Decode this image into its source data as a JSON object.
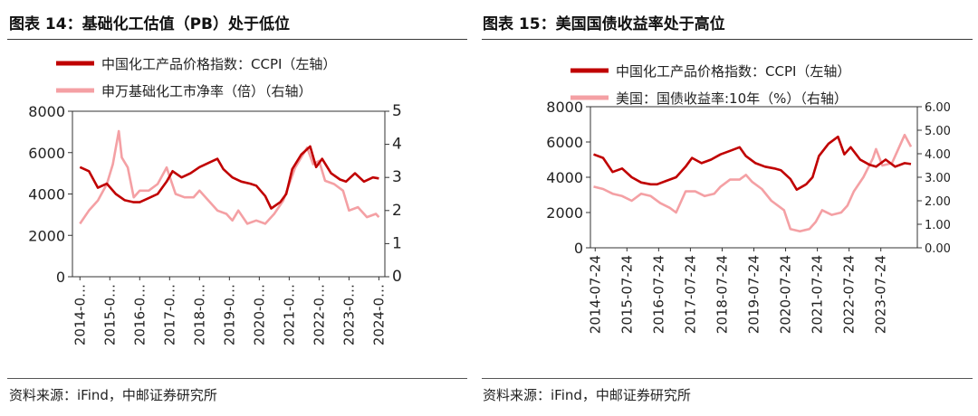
{
  "left": {
    "title": "图表 14：基础化工估值（PB）处于低位",
    "source": "资料来源：iFind，中邮证券研究所"
  },
  "right": {
    "title": "图表 15：美国国债收益率处于高位",
    "source": "资料来源：iFind，中邮证券研究所"
  },
  "colors": {
    "ccpi": "#c00000",
    "second": "#f4a0a4",
    "frame": "#333333"
  },
  "chart_data": [
    {
      "type": "line",
      "title": "基础化工估值（PB）处于低位",
      "legend": [
        "中国化工产品价格指数：CCPI（左轴）",
        "申万基础化工市净率（倍）（右轴）"
      ],
      "x_tick_labels": [
        "2014-0…",
        "2015-0…",
        "2016-0…",
        "2017-0…",
        "2018-0…",
        "2019-0…",
        "2020-0…",
        "2021-0…",
        "2022-0…",
        "2023-0…",
        "2024-0…"
      ],
      "y_left": {
        "min": 0,
        "max": 8000,
        "ticks": [
          "0",
          "2000",
          "4000",
          "6000",
          "8000"
        ]
      },
      "y_right": {
        "min": 0,
        "max": 5,
        "ticks": [
          "0",
          "1",
          "2",
          "3",
          "4",
          "5"
        ]
      },
      "series": [
        {
          "name": "中国化工产品价格指数：CCPI（左轴）",
          "axis": "left",
          "x": [
            2014.0,
            2014.3,
            2014.6,
            2014.9,
            2015.2,
            2015.5,
            2015.8,
            2016.0,
            2016.3,
            2016.6,
            2016.9,
            2017.1,
            2017.4,
            2017.7,
            2018.0,
            2018.3,
            2018.6,
            2018.8,
            2019.1,
            2019.4,
            2019.7,
            2019.9,
            2020.2,
            2020.4,
            2020.7,
            2020.9,
            2021.1,
            2021.4,
            2021.7,
            2021.9,
            2022.1,
            2022.4,
            2022.7,
            2022.9,
            2023.2,
            2023.5,
            2023.8,
            2024.0
          ],
          "y": [
            5300,
            5100,
            4300,
            4500,
            4000,
            3700,
            3600,
            3600,
            3800,
            4000,
            4600,
            5100,
            4800,
            5000,
            5300,
            5500,
            5700,
            5200,
            4800,
            4600,
            4500,
            4400,
            3900,
            3300,
            3600,
            4000,
            5200,
            5900,
            6300,
            5300,
            5700,
            5000,
            4700,
            4600,
            5000,
            4600,
            4800,
            4750
          ]
        },
        {
          "name": "申万基础化工市净率（倍）（右轴）",
          "axis": "right",
          "x": [
            2014.0,
            2014.3,
            2014.6,
            2014.9,
            2015.1,
            2015.3,
            2015.4,
            2015.6,
            2015.8,
            2016.0,
            2016.3,
            2016.6,
            2016.9,
            2017.2,
            2017.5,
            2017.8,
            2018.0,
            2018.3,
            2018.6,
            2018.9,
            2019.1,
            2019.3,
            2019.6,
            2019.9,
            2020.2,
            2020.5,
            2020.8,
            2021.0,
            2021.2,
            2021.4,
            2021.6,
            2021.8,
            2022.0,
            2022.2,
            2022.5,
            2022.8,
            2023.0,
            2023.3,
            2023.6,
            2023.9,
            2024.0
          ],
          "y": [
            1.6,
            2.0,
            2.3,
            2.8,
            3.4,
            4.4,
            3.6,
            3.3,
            2.4,
            2.6,
            2.6,
            2.8,
            3.3,
            2.5,
            2.4,
            2.4,
            2.6,
            2.3,
            2.0,
            1.9,
            1.7,
            2.0,
            1.6,
            1.7,
            1.6,
            1.9,
            2.3,
            2.8,
            3.3,
            3.6,
            3.9,
            3.4,
            3.5,
            2.9,
            2.8,
            2.6,
            2.0,
            2.1,
            1.8,
            1.9,
            1.8
          ]
        }
      ]
    },
    {
      "type": "line",
      "title": "美国国债收益率处于高位",
      "legend": [
        "中国化工产品价格指数：CCPI（左轴）",
        "美国：国债收益率:10年（%）（右轴）"
      ],
      "x_tick_labels": [
        "2014-07-24",
        "2015-07-24",
        "2016-07-24",
        "2017-07-24",
        "2018-07-24",
        "2019-07-24",
        "2020-07-24",
        "2021-07-24",
        "2022-07-24",
        "2023-07-24"
      ],
      "y_left": {
        "min": 0,
        "max": 8000,
        "ticks": [
          "0",
          "2000",
          "4000",
          "6000",
          "8000"
        ]
      },
      "y_right": {
        "min": 0,
        "max": 6,
        "ticks": [
          "0.00",
          "1.00",
          "2.00",
          "3.00",
          "4.00",
          "5.00",
          "6.00"
        ]
      },
      "series": [
        {
          "name": "中国化工产品价格指数：CCPI（左轴）",
          "axis": "left",
          "x": [
            2014.0,
            2014.3,
            2014.6,
            2014.9,
            2015.2,
            2015.5,
            2015.8,
            2016.0,
            2016.3,
            2016.6,
            2016.9,
            2017.1,
            2017.4,
            2017.7,
            2018.0,
            2018.3,
            2018.6,
            2018.8,
            2019.1,
            2019.4,
            2019.7,
            2019.9,
            2020.2,
            2020.4,
            2020.7,
            2020.9,
            2021.1,
            2021.4,
            2021.7,
            2021.9,
            2022.1,
            2022.4,
            2022.7,
            2022.9,
            2023.2,
            2023.5,
            2023.8,
            2024.0
          ],
          "y": [
            5300,
            5100,
            4300,
            4500,
            4000,
            3700,
            3600,
            3600,
            3800,
            4000,
            4600,
            5100,
            4800,
            5000,
            5300,
            5500,
            5700,
            5200,
            4800,
            4600,
            4500,
            4400,
            3900,
            3300,
            3600,
            4000,
            5200,
            5900,
            6300,
            5300,
            5700,
            5000,
            4700,
            4600,
            5000,
            4600,
            4800,
            4750
          ]
        },
        {
          "name": "美国：国债收益率:10年（%）（右轴）",
          "axis": "right",
          "x": [
            2014.0,
            2014.3,
            2014.6,
            2014.9,
            2015.2,
            2015.5,
            2015.8,
            2016.1,
            2016.4,
            2016.6,
            2016.9,
            2017.2,
            2017.5,
            2017.8,
            2018.0,
            2018.3,
            2018.6,
            2018.8,
            2019.0,
            2019.3,
            2019.6,
            2019.9,
            2020.0,
            2020.2,
            2020.5,
            2020.8,
            2021.0,
            2021.2,
            2021.5,
            2021.8,
            2022.0,
            2022.2,
            2022.5,
            2022.8,
            2022.9,
            2023.1,
            2023.4,
            2023.6,
            2023.8,
            2024.0
          ],
          "y": [
            2.6,
            2.5,
            2.3,
            2.2,
            2.0,
            2.3,
            2.2,
            1.9,
            1.7,
            1.5,
            2.4,
            2.4,
            2.2,
            2.3,
            2.6,
            2.9,
            2.9,
            3.1,
            2.8,
            2.5,
            2.0,
            1.7,
            1.6,
            0.8,
            0.7,
            0.8,
            1.1,
            1.6,
            1.4,
            1.5,
            1.8,
            2.4,
            3.0,
            3.8,
            4.2,
            3.5,
            3.6,
            4.2,
            4.8,
            4.3
          ]
        }
      ]
    }
  ]
}
